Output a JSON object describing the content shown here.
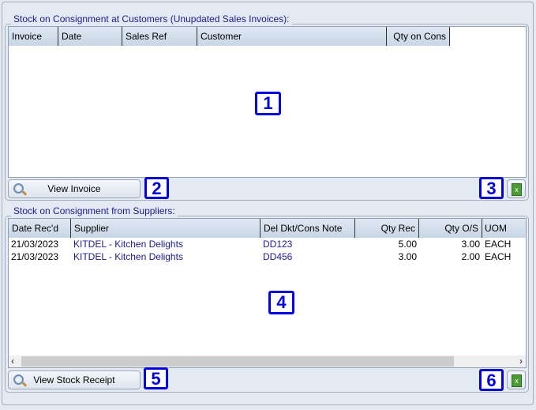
{
  "customers_section": {
    "title": "Stock on Consignment at Customers (Unupdated Sales Invoices):",
    "columns": [
      "Invoice",
      "Date",
      "Sales Ref",
      "Customer",
      "Qty on Cons"
    ],
    "rows": [],
    "view_button": "View Invoice",
    "badges": [
      "1",
      "2",
      "3"
    ]
  },
  "suppliers_section": {
    "title": "Stock on Consignment from Suppliers:",
    "columns": [
      "Date Rec'd",
      "Supplier",
      "Del Dkt/Cons Note",
      "Qty Rec",
      "Qty O/S",
      "UOM"
    ],
    "rows": [
      [
        "21/03/2023",
        "KITDEL - Kitchen Delights",
        "DD123",
        "5.00",
        "3.00",
        "EACH"
      ],
      [
        "21/03/2023",
        "KITDEL - Kitchen Delights",
        "DD456",
        "3.00",
        "2.00",
        "EACH"
      ]
    ],
    "view_button": "View Stock Receipt",
    "badges": [
      "4",
      "5",
      "6"
    ]
  },
  "icons": {
    "view": "magnifier-icon",
    "export": "excel-icon",
    "scroll_left": "‹",
    "scroll_right": "›"
  },
  "colors": {
    "link_text": "#1a1a8c",
    "badge": "#0000e0",
    "background": "#e3eaf3"
  }
}
